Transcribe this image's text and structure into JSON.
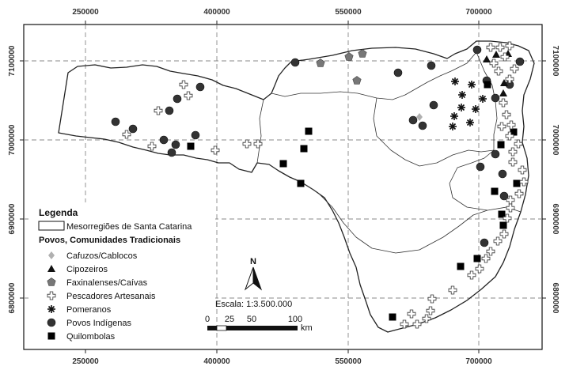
{
  "x_ticks": [
    "250000",
    "400000",
    "550000",
    "700000"
  ],
  "y_ticks": [
    "7100000",
    "7000000",
    "6900000",
    "6800000"
  ],
  "north_label": "N",
  "scale": {
    "title": "Escala: 1:3.500.000",
    "labels": [
      "0",
      "25",
      "50",
      "100"
    ],
    "unit": "km"
  },
  "legend": {
    "title": "Legenda",
    "boundary_label": "Mesorregiões de Santa Catarina",
    "group_title": "Povos, Comunidades Tradicionais",
    "items": [
      {
        "label": "Cafuzos/Cablocos",
        "symbol": "diamond",
        "color": "#b0b0b0"
      },
      {
        "label": "Cipozeiros",
        "symbol": "triangle",
        "color": "#111111"
      },
      {
        "label": "Faxinalenses/Caívas",
        "symbol": "pentagon",
        "color": "#777777"
      },
      {
        "label": "Pescadores Artesanais",
        "symbol": "cross",
        "color": "#ffffff"
      },
      {
        "label": "Pomeranos",
        "symbol": "asterisk",
        "color": "#111111"
      },
      {
        "label": "Povos Indígenas",
        "symbol": "circle",
        "color": "#333333"
      },
      {
        "label": "Quilombolas",
        "symbol": "square",
        "color": "#000000"
      }
    ]
  }
}
